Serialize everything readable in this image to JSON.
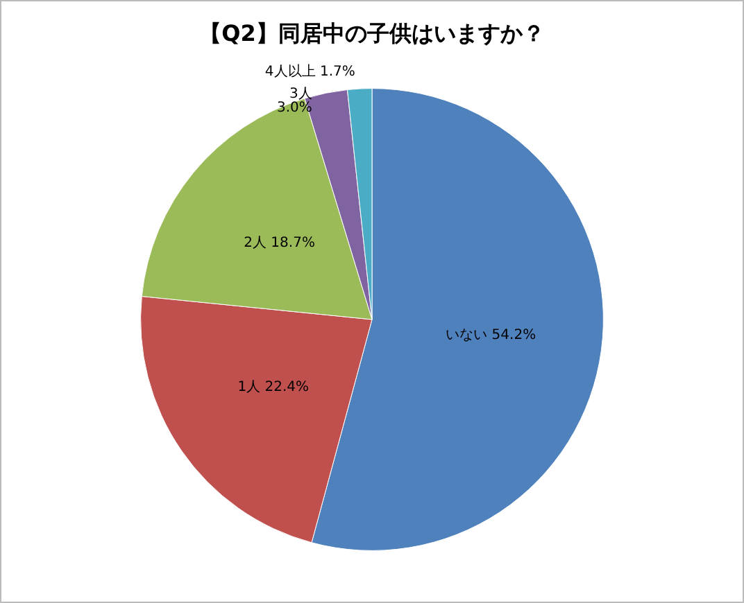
{
  "chart_data": {
    "type": "pie",
    "title": "【Q2】同居中の子供はいますか？",
    "categories": [
      "いない",
      "1人",
      "2人",
      "3人",
      "4人以上"
    ],
    "values": [
      54.2,
      22.4,
      18.7,
      3.0,
      1.7
    ],
    "value_labels": [
      "54.2%",
      "22.4%",
      "18.7%",
      "3.0%",
      "1.7%"
    ],
    "colors": [
      "#4f81bd",
      "#c0504d",
      "#9bbb59",
      "#8064a2",
      "#4bacc6"
    ],
    "legend": false
  }
}
